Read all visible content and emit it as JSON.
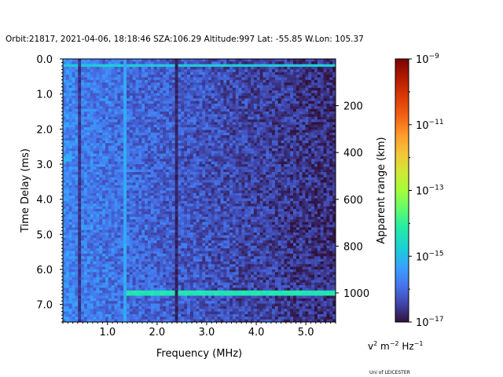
{
  "title": "Orbit:21817, 2021-04-06, 18:18:46 SZA:106.29 Altitude:997 Lat: -55.85 W.Lon: 105.37",
  "credit": "Uni of LEICESTER",
  "colorbar": {
    "unit_base": "v",
    "unit_exp1": "2",
    "unit_mid": " m",
    "unit_exp2": "−2",
    "unit_mid2": " Hz",
    "unit_exp3": "−1",
    "colormap": "turbo",
    "scale": "log",
    "range": [
      1e-17,
      1e-09
    ],
    "ticks": [
      {
        "value": -9,
        "label_base": "10",
        "label_exp": "−9"
      },
      {
        "value": -11,
        "label_base": "10",
        "label_exp": "−11"
      },
      {
        "value": -13,
        "label_base": "10",
        "label_exp": "−13"
      },
      {
        "value": -15,
        "label_base": "10",
        "label_exp": "−15"
      },
      {
        "value": -17,
        "label_base": "10",
        "label_exp": "−17"
      }
    ]
  },
  "chart_data": {
    "type": "heatmap",
    "title": "Orbit:21817, 2021-04-06, 18:18:46 SZA:106.29 Altitude:997 Lat: -55.85 W.Lon: 105.37",
    "xlabel": "Frequency (MHz)",
    "ylabel": "Time Delay (ms)",
    "y2label": "Apparent range (km)",
    "xlim": [
      0.1,
      5.6
    ],
    "ylim": [
      7.5,
      0.0
    ],
    "xticks": [
      {
        "value": 1.0,
        "label": "1.0"
      },
      {
        "value": 2.0,
        "label": "2.0"
      },
      {
        "value": 3.0,
        "label": "3.0"
      },
      {
        "value": 4.0,
        "label": "4.0"
      },
      {
        "value": 5.0,
        "label": "5.0"
      }
    ],
    "yticks": [
      {
        "value": 0.0,
        "label": "0.0"
      },
      {
        "value": 1.0,
        "label": "1.0"
      },
      {
        "value": 2.0,
        "label": "2.0"
      },
      {
        "value": 3.0,
        "label": "3.0"
      },
      {
        "value": 4.0,
        "label": "4.0"
      },
      {
        "value": 5.0,
        "label": "5.0"
      },
      {
        "value": 6.0,
        "label": "6.0"
      },
      {
        "value": 7.0,
        "label": "7.0"
      }
    ],
    "y2ticks": [
      {
        "value": 200,
        "label": "200"
      },
      {
        "value": 400,
        "label": "400"
      },
      {
        "value": 600,
        "label": "600"
      },
      {
        "value": 800,
        "label": "800"
      },
      {
        "value": 1000,
        "label": "1000"
      }
    ],
    "y2_ms_per_km": 0.006671,
    "features": [
      {
        "kind": "band",
        "axis": "time_delay_ms",
        "at": 0.18,
        "from_mhz": 0.1,
        "to_mhz": 5.6,
        "log_level": -14.8
      },
      {
        "kind": "band",
        "axis": "time_delay_ms",
        "at": 6.7,
        "from_mhz": 1.3,
        "to_mhz": 5.6,
        "log_level": -14.3
      },
      {
        "kind": "band",
        "axis": "time_delay_ms",
        "at": 2.85,
        "from_mhz": 0.1,
        "to_mhz": 0.3,
        "log_level": -15.1
      },
      {
        "kind": "line",
        "axis": "frequency_mhz",
        "at": 1.33,
        "from_ms": 0.0,
        "to_ms": 7.5,
        "log_level": -15.2
      },
      {
        "kind": "line",
        "axis": "frequency_mhz",
        "at": 2.38,
        "from_ms": 0.0,
        "to_ms": 7.5,
        "log_level": -16.8
      },
      {
        "kind": "line",
        "axis": "frequency_mhz",
        "at": 0.45,
        "from_ms": 0.0,
        "to_ms": 7.5,
        "log_level": -16.6
      }
    ],
    "background_log_level": {
      "low_freq": -15.6,
      "high_freq": -16.7
    }
  }
}
